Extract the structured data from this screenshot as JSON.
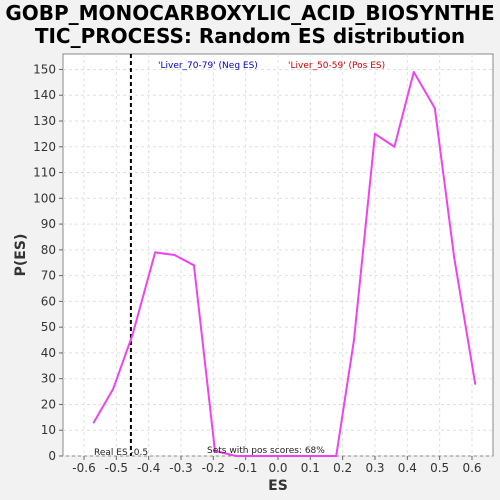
{
  "chart_data": {
    "type": "line",
    "title_line1": "GOBP_MONOCARBOXYLIC_ACID_BIOSYNTHE",
    "title_line2": "TIC_PROCESS: Random ES distribution",
    "xlabel": "ES",
    "ylabel": "P(ES)",
    "xlim": [
      -0.665,
      0.665
    ],
    "ylim": [
      0,
      156
    ],
    "x_ticks": [
      -0.6,
      -0.5,
      -0.4,
      -0.3,
      -0.2,
      -0.1,
      0.0,
      0.1,
      0.2,
      0.3,
      0.4,
      0.5,
      0.6
    ],
    "x_tick_labels": [
      "-0.6",
      "-0.5",
      "-0.4",
      "-0.3",
      "-0.2",
      "-0.1",
      "0.0",
      "0.1",
      "0.2",
      "0.3",
      "0.4",
      "0.5",
      "0.6"
    ],
    "y_ticks": [
      0,
      10,
      20,
      30,
      40,
      50,
      60,
      70,
      80,
      90,
      100,
      110,
      120,
      130,
      140,
      150
    ],
    "y_tick_labels": [
      "0",
      "10",
      "20",
      "30",
      "40",
      "50",
      "60",
      "70",
      "80",
      "90",
      "100",
      "110",
      "120",
      "130",
      "140",
      "150"
    ],
    "grid": true,
    "legend": {
      "neg_label": "'Liver_70-79' (Neg ES)",
      "pos_label": "'Liver_50-59' (Pos ES)",
      "neg_color": "#0000cc",
      "pos_color": "#cc0000"
    },
    "series": [
      {
        "color": "#ee44ee",
        "x": [
          -0.57,
          -0.51,
          -0.45,
          -0.38,
          -0.32,
          -0.26,
          -0.195,
          -0.13,
          -0.07,
          -0.01,
          0.055,
          0.12,
          0.18,
          0.235,
          0.3,
          0.36,
          0.42,
          0.485,
          0.545,
          0.61
        ],
        "y": [
          13,
          26,
          47,
          79,
          78,
          74,
          2,
          0,
          0,
          0,
          0,
          0,
          0,
          45,
          125,
          120,
          149,
          135,
          77,
          28
        ]
      }
    ],
    "real_es": {
      "x": -0.455,
      "label": "Real ES -0.5"
    },
    "annotation": "Sets with pos scores: 68%"
  },
  "colors": {
    "background": "#f2f2f2",
    "plot_background": "#ffffff",
    "grid": "#e0e0e0",
    "series": "#ee44ee"
  }
}
